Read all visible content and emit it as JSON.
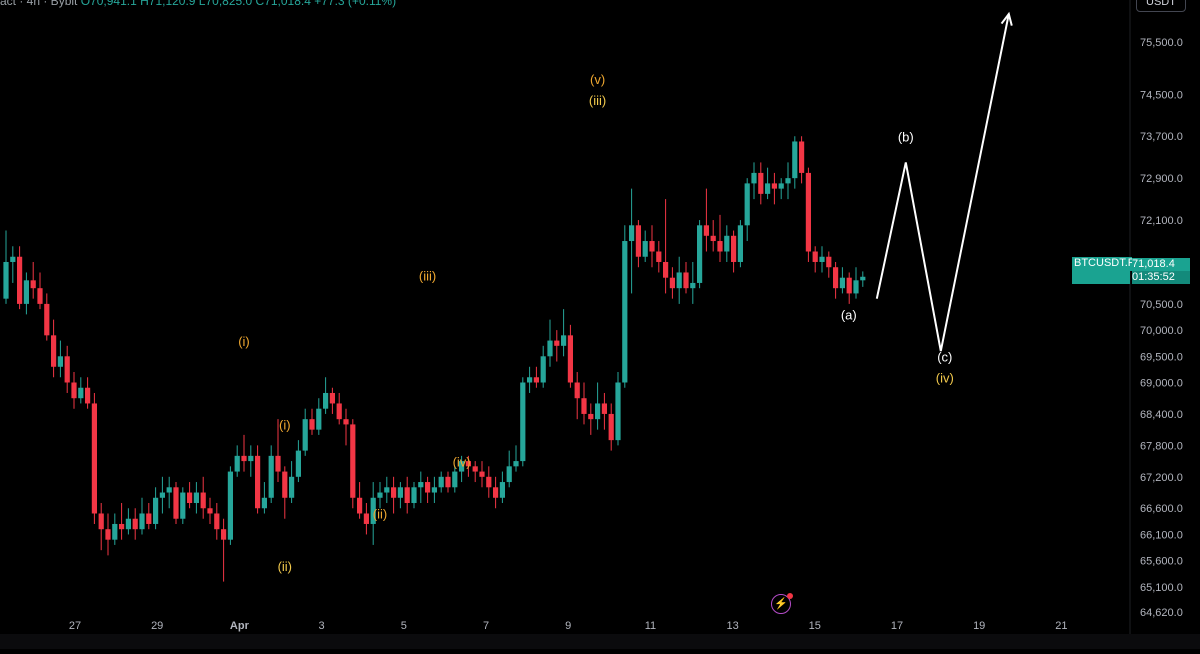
{
  "header": {
    "text": "act · 4h · Bybit",
    "ohlc": "O70,941.1 H71,120.9 L70,825.0 C71,018.4 +77.3 (+0.11%)"
  },
  "currency_button": "USDT",
  "price_tag": {
    "symbol": "BTCUSDT.P",
    "price": "71,018.4",
    "countdown": "01:35:52"
  },
  "colors": {
    "background": "#000000",
    "up": "#26a69a",
    "down": "#f23645",
    "orange_label": "#f0a830",
    "yellow_label": "#f2c94c",
    "white_label": "#ffffff",
    "axis_text": "#b2b5be"
  },
  "icons": [
    "lightning-icon"
  ],
  "chart_data": {
    "type": "candlestick",
    "ylim": [
      64200,
      76300
    ],
    "y_ticks": [
      {
        "value": 75500,
        "label": "75,500.0"
      },
      {
        "value": 74500,
        "label": "74,500.0"
      },
      {
        "value": 73700,
        "label": "73,700.0"
      },
      {
        "value": 72900,
        "label": "72,900.0"
      },
      {
        "value": 72100,
        "label": "72,100.0"
      },
      {
        "value": 71300,
        "label": "71,300.0"
      },
      {
        "value": 70500,
        "label": "70,500.0"
      },
      {
        "value": 70000,
        "label": "70,000.0"
      },
      {
        "value": 69500,
        "label": "69,500.0"
      },
      {
        "value": 69000,
        "label": "69,000.0"
      },
      {
        "value": 68400,
        "label": "68,400.0"
      },
      {
        "value": 67800,
        "label": "67,800.0"
      },
      {
        "value": 67200,
        "label": "67,200.0"
      },
      {
        "value": 66600,
        "label": "66,600.0"
      },
      {
        "value": 66100,
        "label": "66,100.0"
      },
      {
        "value": 65600,
        "label": "65,600.0"
      },
      {
        "value": 65100,
        "label": "65,100.0"
      },
      {
        "value": 64620,
        "label": "64,620.0"
      }
    ],
    "x_ticks": [
      {
        "day": 27,
        "label": "27"
      },
      {
        "day": 29,
        "label": "29"
      },
      {
        "day": 31,
        "label": "Apr"
      },
      {
        "day": 33,
        "label": "3"
      },
      {
        "day": 35,
        "label": "5"
      },
      {
        "day": 37,
        "label": "7"
      },
      {
        "day": 39,
        "label": "9"
      },
      {
        "day": 41,
        "label": "11"
      },
      {
        "day": 43,
        "label": "13"
      },
      {
        "day": 45,
        "label": "15"
      },
      {
        "day": 47,
        "label": "17"
      },
      {
        "day": 49,
        "label": "19"
      },
      {
        "day": 51,
        "label": "21"
      }
    ],
    "candles": [
      [
        70600,
        71300,
        70500,
        71900
      ],
      [
        71300,
        71400,
        70900,
        71600
      ],
      [
        71400,
        70500,
        70400,
        71600
      ],
      [
        70500,
        70950,
        70300,
        71100
      ],
      [
        70950,
        70800,
        70600,
        71300
      ],
      [
        70800,
        70500,
        70400,
        71100
      ],
      [
        70500,
        69900,
        69800,
        70700
      ],
      [
        69900,
        69300,
        69100,
        70200
      ],
      [
        69300,
        69500,
        69100,
        69800
      ],
      [
        69500,
        69000,
        68800,
        69700
      ],
      [
        69000,
        68700,
        68500,
        69200
      ],
      [
        68700,
        68900,
        68600,
        69100
      ],
      [
        68900,
        68600,
        68500,
        69100
      ],
      [
        68600,
        66500,
        66300,
        68800
      ],
      [
        66500,
        66200,
        65800,
        66700
      ],
      [
        66200,
        66000,
        65700,
        66500
      ],
      [
        66000,
        66300,
        65900,
        66500
      ],
      [
        66300,
        66200,
        66000,
        66700
      ],
      [
        66200,
        66400,
        66100,
        66600
      ],
      [
        66400,
        66200,
        66000,
        66600
      ],
      [
        66200,
        66500,
        66100,
        66800
      ],
      [
        66500,
        66300,
        66200,
        66700
      ],
      [
        66300,
        66800,
        66200,
        67000
      ],
      [
        66800,
        66900,
        66500,
        67200
      ],
      [
        66900,
        67000,
        66600,
        67200
      ],
      [
        67000,
        66400,
        66300,
        67100
      ],
      [
        66400,
        66900,
        66300,
        67000
      ],
      [
        66900,
        66700,
        66600,
        67100
      ],
      [
        66700,
        66900,
        66500,
        67100
      ],
      [
        66900,
        66600,
        66400,
        67200
      ],
      [
        66600,
        66500,
        66300,
        66800
      ],
      [
        66500,
        66200,
        66000,
        66700
      ],
      [
        66200,
        66000,
        65200,
        66400
      ],
      [
        66000,
        67300,
        65900,
        67400
      ],
      [
        67300,
        67600,
        67200,
        67800
      ],
      [
        67600,
        67500,
        67300,
        68000
      ],
      [
        67500,
        67600,
        67200,
        67800
      ],
      [
        67600,
        66600,
        66500,
        67800
      ],
      [
        66600,
        66800,
        66500,
        67100
      ],
      [
        66800,
        67600,
        66700,
        67800
      ],
      [
        67600,
        67300,
        67100,
        68300
      ],
      [
        67300,
        66800,
        66400,
        67400
      ],
      [
        66800,
        67200,
        66700,
        67500
      ],
      [
        67200,
        67700,
        67100,
        67900
      ],
      [
        67700,
        68300,
        67600,
        68500
      ],
      [
        68300,
        68100,
        68000,
        68500
      ],
      [
        68100,
        68500,
        68000,
        68700
      ],
      [
        68500,
        68800,
        68400,
        69100
      ],
      [
        68800,
        68600,
        68400,
        68900
      ],
      [
        68600,
        68300,
        68200,
        68800
      ],
      [
        68300,
        68200,
        67800,
        68500
      ],
      [
        68200,
        66800,
        66600,
        68300
      ],
      [
        66800,
        66500,
        66400,
        67100
      ],
      [
        66500,
        66300,
        66100,
        66700
      ],
      [
        66300,
        66800,
        65900,
        67100
      ],
      [
        66800,
        66900,
        66600,
        67100
      ],
      [
        66900,
        67000,
        66700,
        67200
      ],
      [
        67000,
        66800,
        66500,
        67200
      ],
      [
        66800,
        67000,
        66600,
        67100
      ],
      [
        67000,
        66700,
        66500,
        67200
      ],
      [
        66700,
        67000,
        66600,
        67100
      ],
      [
        67000,
        67100,
        66700,
        67300
      ],
      [
        67100,
        66900,
        66700,
        67200
      ],
      [
        66900,
        67000,
        66700,
        67200
      ],
      [
        67000,
        67200,
        66900,
        67300
      ],
      [
        67200,
        67000,
        66900,
        67300
      ],
      [
        67000,
        67300,
        66900,
        67400
      ],
      [
        67300,
        67500,
        67100,
        67600
      ],
      [
        67500,
        67400,
        67200,
        67600
      ],
      [
        67400,
        67300,
        67100,
        67500
      ],
      [
        67300,
        67200,
        67000,
        67500
      ],
      [
        67200,
        67000,
        66800,
        67400
      ],
      [
        67000,
        66800,
        66600,
        67200
      ],
      [
        66800,
        67100,
        66700,
        67300
      ],
      [
        67100,
        67400,
        67000,
        67700
      ],
      [
        67400,
        67500,
        67300,
        67800
      ],
      [
        67500,
        69000,
        67400,
        69100
      ],
      [
        69000,
        69100,
        68800,
        69300
      ],
      [
        69100,
        69000,
        68900,
        69300
      ],
      [
        69000,
        69500,
        68900,
        69700
      ],
      [
        69500,
        69800,
        69300,
        70200
      ],
      [
        69800,
        69700,
        69400,
        70000
      ],
      [
        69700,
        69900,
        69500,
        70400
      ],
      [
        69900,
        69000,
        68900,
        70100
      ],
      [
        69000,
        68700,
        68300,
        69200
      ],
      [
        68700,
        68400,
        68200,
        69000
      ],
      [
        68400,
        68300,
        68000,
        68600
      ],
      [
        68300,
        68600,
        68100,
        69000
      ],
      [
        68600,
        68400,
        68100,
        68800
      ],
      [
        68400,
        67900,
        67700,
        68600
      ],
      [
        67900,
        69000,
        67800,
        69200
      ],
      [
        69000,
        71700,
        68900,
        72000
      ],
      [
        71700,
        72000,
        70700,
        72700
      ],
      [
        72000,
        71400,
        71200,
        72100
      ],
      [
        71400,
        71700,
        71300,
        71900
      ],
      [
        71700,
        71500,
        71200,
        72000
      ],
      [
        71500,
        71300,
        71100,
        71700
      ],
      [
        71300,
        71000,
        70700,
        72500
      ],
      [
        71000,
        70800,
        70600,
        71200
      ],
      [
        70800,
        71100,
        70500,
        71400
      ],
      [
        71100,
        70800,
        70700,
        71300
      ],
      [
        70800,
        70900,
        70500,
        71300
      ],
      [
        70900,
        72000,
        70800,
        72100
      ],
      [
        72000,
        71800,
        71500,
        72700
      ],
      [
        71800,
        71700,
        71500,
        72100
      ],
      [
        71700,
        71500,
        71300,
        72200
      ],
      [
        71500,
        71800,
        71300,
        72000
      ],
      [
        71800,
        71300,
        71100,
        71900
      ],
      [
        71300,
        72000,
        71200,
        72100
      ],
      [
        72000,
        72800,
        71700,
        72900
      ],
      [
        72800,
        73000,
        72500,
        73200
      ],
      [
        73000,
        72600,
        72400,
        73200
      ],
      [
        72600,
        72800,
        72500,
        73100
      ],
      [
        72800,
        72700,
        72400,
        73000
      ],
      [
        72700,
        72800,
        72500,
        72900
      ],
      [
        72800,
        72900,
        72500,
        73200
      ],
      [
        72900,
        73600,
        72700,
        73700
      ],
      [
        73600,
        73000,
        72800,
        73700
      ],
      [
        73000,
        71500,
        71300,
        73100
      ],
      [
        71500,
        71300,
        71100,
        71600
      ],
      [
        71300,
        71400,
        71100,
        71600
      ],
      [
        71400,
        71200,
        71000,
        71500
      ],
      [
        71200,
        70800,
        70600,
        71300
      ],
      [
        70800,
        71000,
        70700,
        71200
      ],
      [
        71000,
        70700,
        70500,
        71100
      ],
      [
        70700,
        70950,
        70600,
        71200
      ],
      [
        70950,
        71018,
        70825,
        71120
      ]
    ],
    "projection": [
      {
        "label": "(a)",
        "value": 70600
      },
      {
        "label": "(b)",
        "value": 73200
      },
      {
        "label": "(c)",
        "value": 69600
      },
      {
        "label": "target",
        "value": 76300
      }
    ],
    "wave_labels": [
      {
        "text": "(i)",
        "color": "orange",
        "candle": 35,
        "value": 69700
      },
      {
        "text": "(i)",
        "color": "orange",
        "candle": 41,
        "value": 68100
      },
      {
        "text": "(ii)",
        "color": "yellow",
        "candle": 41,
        "value": 65400
      },
      {
        "text": "(ii)",
        "color": "orange",
        "candle": 55,
        "value": 66400
      },
      {
        "text": "(iii)",
        "color": "orange",
        "candle": 62,
        "value": 70950
      },
      {
        "text": "(iv)",
        "color": "orange",
        "candle": 67,
        "value": 67400
      },
      {
        "text": "(v)",
        "color": "orange",
        "candle": 87,
        "value": 74700
      },
      {
        "text": "(iii)",
        "color": "yellow",
        "candle": 87,
        "value": 74300
      },
      {
        "text": "(a)",
        "color": "white",
        "candle": 92,
        "value": 70200
      },
      {
        "text": "(b)",
        "color": "white",
        "candle": 99,
        "value": 73600
      },
      {
        "text": "(c)",
        "color": "white",
        "candle": 104,
        "value": 69400
      },
      {
        "text": "(iv)",
        "color": "yellow",
        "candle": 104,
        "value": 69000
      }
    ]
  }
}
